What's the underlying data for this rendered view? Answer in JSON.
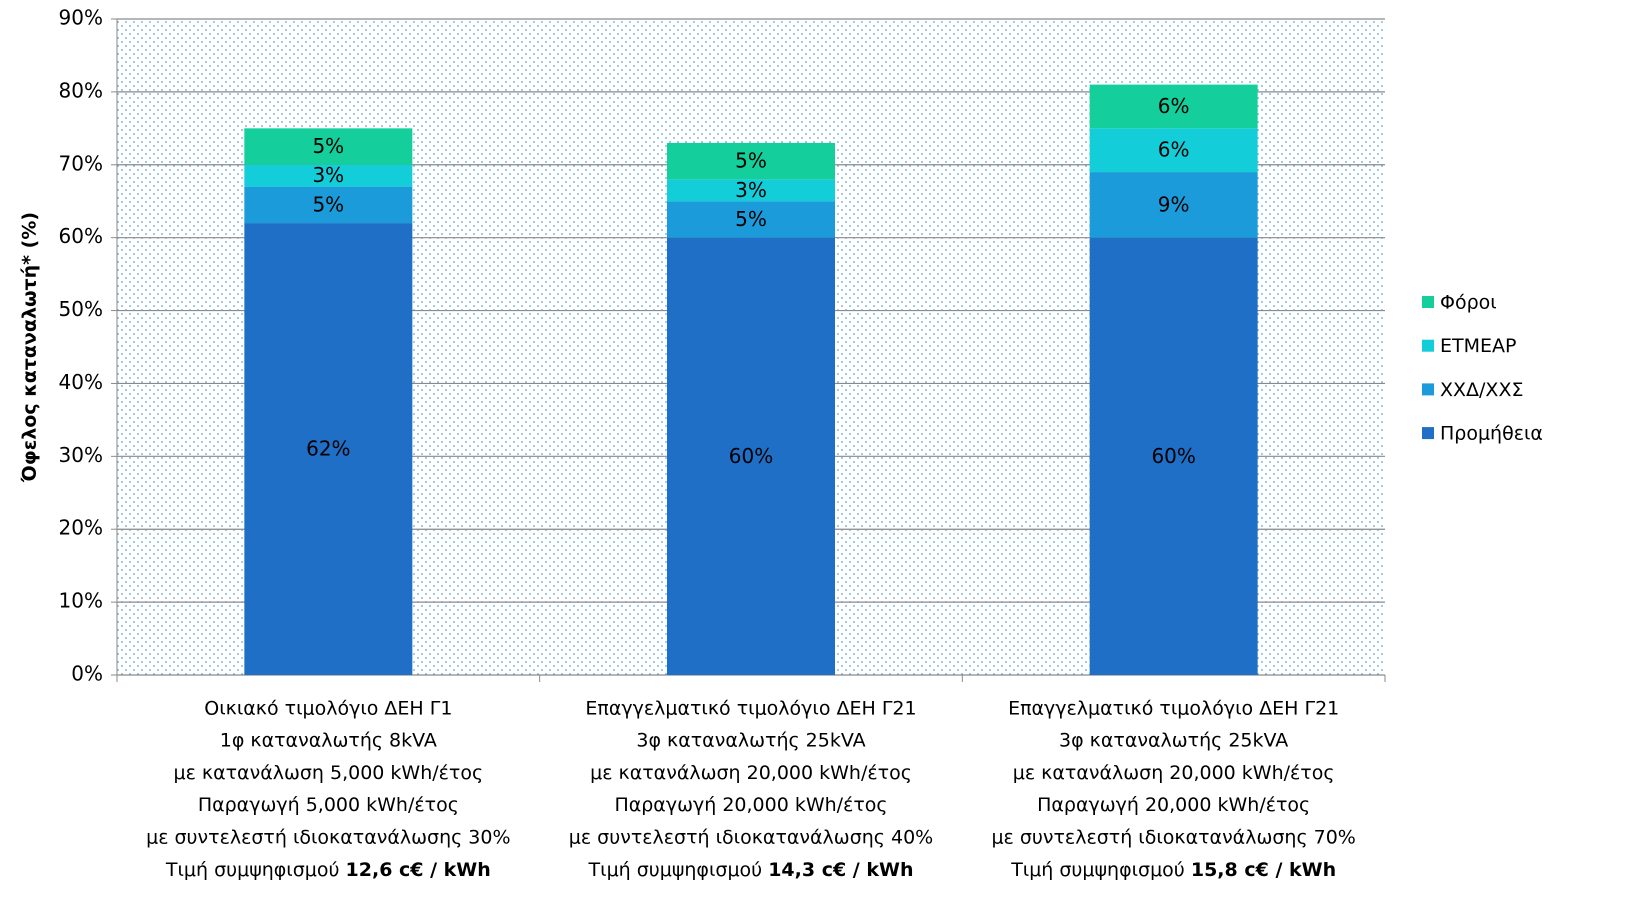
{
  "chart_data": {
    "type": "stacked_bar",
    "y_label": "Όφελος καταναλωτή* (%)",
    "categories": [
      {
        "lines": [
          "Οικιακό τιμολόγιο ΔΕΗ Γ1",
          "1φ καταναλωτής 8kVA",
          "με κατανάλωση 5,000 kWh/έτος",
          "Παραγωγή 5,000 kWh/έτος",
          "με συντελεστή ιδιοκατανάλωσης 30%"
        ],
        "price_label": "Τιμή συμψηφισμού",
        "price": "12,6 c€ / kWh"
      },
      {
        "lines": [
          "Επαγγελματικό τιμολόγιο ΔΕΗ Γ21",
          "3φ καταναλωτής 25kVA",
          "με κατανάλωση 20,000 kWh/έτος",
          "Παραγωγή 20,000 kWh/έτος",
          "με συντελεστή ιδιοκατανάλωσης 40%"
        ],
        "price_label": "Τιμή συμψηφισμού",
        "price": "14,3 c€ / kWh"
      },
      {
        "lines": [
          "Επαγγελματικό τιμολόγιο ΔΕΗ Γ21",
          "3φ καταναλωτής 25kVA",
          "με κατανάλωση 20,000 kWh/έτος",
          "Παραγωγή 20,000 kWh/έτος",
          "με συντελεστή ιδιοκατανάλωσης 70%"
        ],
        "price_label": "Τιμή συμψηφισμού",
        "price": "15,8 c€ / kWh"
      }
    ],
    "series": [
      {
        "name": "Προμήθεια",
        "color": "#1f6fc6",
        "values": [
          62,
          60,
          60
        ],
        "value_labels": [
          "62%",
          "60%",
          "60%"
        ]
      },
      {
        "name": "ΧΧΔ/ΧΧΣ",
        "color": "#1b9bd9",
        "values": [
          5,
          5,
          9
        ],
        "value_labels": [
          "5%",
          "5%",
          "9%"
        ]
      },
      {
        "name": "ΕΤΜΕΑΡ",
        "color": "#13cdd9",
        "values": [
          3,
          3,
          6
        ],
        "value_labels": [
          "3%",
          "3%",
          "6%"
        ]
      },
      {
        "name": "Φόροι",
        "color": "#14cf9b",
        "values": [
          5,
          5,
          6
        ],
        "value_labels": [
          "5%",
          "5%",
          "6%"
        ]
      }
    ],
    "ylim": [
      0,
      90
    ],
    "yticks": [
      {
        "value": 0,
        "label": "0%"
      },
      {
        "value": 10,
        "label": "10%"
      },
      {
        "value": 20,
        "label": "20%"
      },
      {
        "value": 30,
        "label": "30%"
      },
      {
        "value": 40,
        "label": "40%"
      },
      {
        "value": 50,
        "label": "50%"
      },
      {
        "value": 60,
        "label": "60%"
      },
      {
        "value": 70,
        "label": "70%"
      },
      {
        "value": 80,
        "label": "80%"
      },
      {
        "value": 90,
        "label": "90%"
      }
    ],
    "grid": true,
    "legend": "right"
  }
}
